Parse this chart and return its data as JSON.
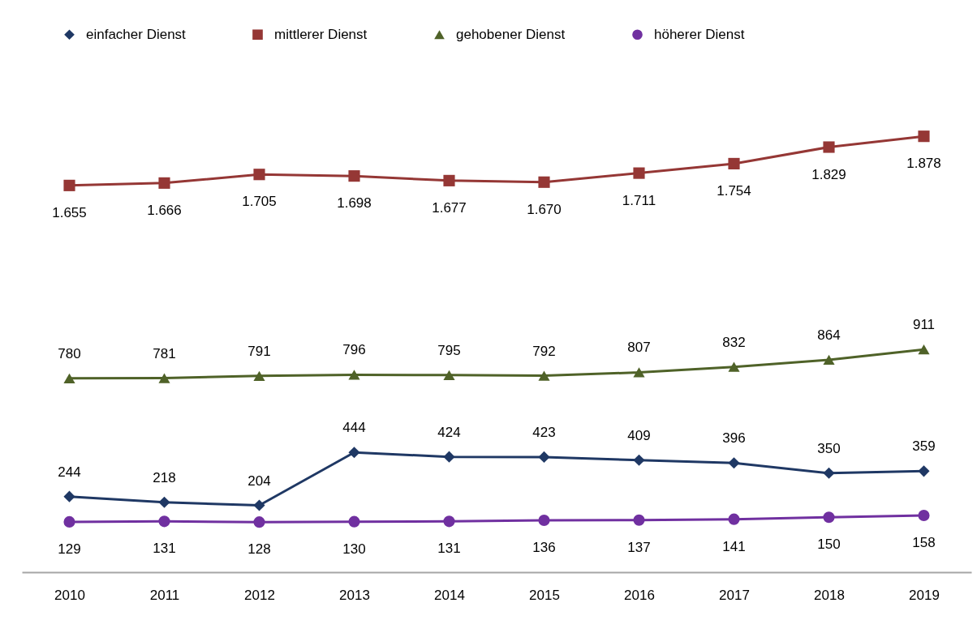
{
  "chart_data": {
    "type": "line",
    "legend": "top",
    "categories": [
      "2010",
      "2011",
      "2012",
      "2013",
      "2014",
      "2015",
      "2016",
      "2017",
      "2018",
      "2019"
    ],
    "series": [
      {
        "name": "einfacher Dienst",
        "color": "#1f3864",
        "marker": "diamond",
        "values": [
          244,
          218,
          204,
          444,
          424,
          423,
          409,
          396,
          350,
          359
        ],
        "value_labels": [
          "244",
          "218",
          "204",
          "444",
          "424",
          "423",
          "409",
          "396",
          "350",
          "359"
        ]
      },
      {
        "name": "mittlerer Dienst",
        "color": "#953735",
        "marker": "square",
        "values": [
          1655,
          1666,
          1705,
          1698,
          1677,
          1670,
          1711,
          1754,
          1829,
          1878
        ],
        "value_labels": [
          "1.655",
          "1.666",
          "1.705",
          "1.698",
          "1.677",
          "1.670",
          "1.711",
          "1.754",
          "1.829",
          "1.878"
        ]
      },
      {
        "name": "gehobener Dienst",
        "color": "#4f6228",
        "marker": "triangle",
        "values": [
          780,
          781,
          791,
          796,
          795,
          792,
          807,
          832,
          864,
          911
        ],
        "value_labels": [
          "780",
          "781",
          "791",
          "796",
          "795",
          "792",
          "807",
          "832",
          "864",
          "911"
        ]
      },
      {
        "name": "höherer Dienst",
        "color": "#7030a0",
        "marker": "circle",
        "values": [
          129,
          131,
          128,
          130,
          131,
          136,
          137,
          141,
          150,
          158
        ],
        "value_labels": [
          "129",
          "131",
          "128",
          "130",
          "131",
          "136",
          "137",
          "141",
          "150",
          "158"
        ]
      }
    ]
  }
}
